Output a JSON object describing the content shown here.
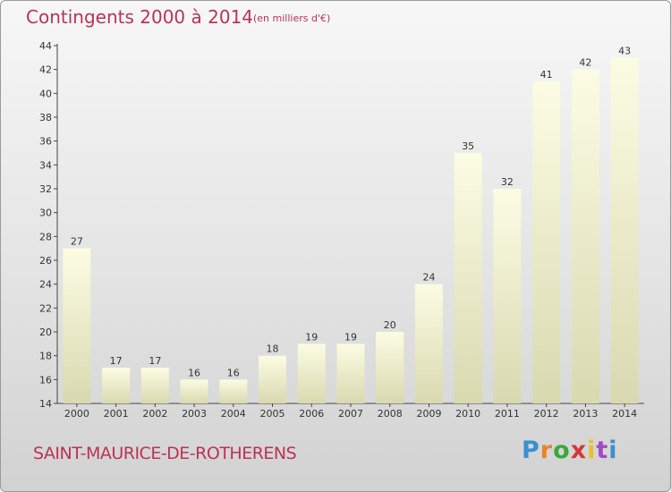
{
  "header": {
    "title": "Contingents 2000 à 2014",
    "subtitle": "(en milliers d'€)"
  },
  "footer": {
    "commune": "SAINT-MAURICE-DE-ROTHERENS",
    "logo_text": "Proxiti",
    "logo_colors": [
      "#3a8fd0",
      "#e8842a",
      "#3aa83a",
      "#d23a3a",
      "#e8c12a",
      "#a24ac2",
      "#3a8fd0"
    ]
  },
  "chart_data": {
    "type": "bar",
    "title": "Contingents 2000 à 2014",
    "subtitle": "(en milliers d'€)",
    "categories": [
      "2000",
      "2001",
      "2002",
      "2003",
      "2004",
      "2005",
      "2006",
      "2007",
      "2008",
      "2009",
      "2010",
      "2011",
      "2012",
      "2013",
      "2014"
    ],
    "values": [
      27,
      17,
      17,
      16,
      16,
      18,
      19,
      19,
      20,
      24,
      35,
      32,
      41,
      42,
      43
    ],
    "ylim": [
      14,
      44
    ],
    "yticks": [
      14,
      16,
      18,
      20,
      22,
      24,
      26,
      28,
      30,
      32,
      34,
      36,
      38,
      40,
      42,
      44
    ],
    "grid": false,
    "bar_color_top": "#fcfce4",
    "bar_color_bottom": "#d9d9b0"
  }
}
